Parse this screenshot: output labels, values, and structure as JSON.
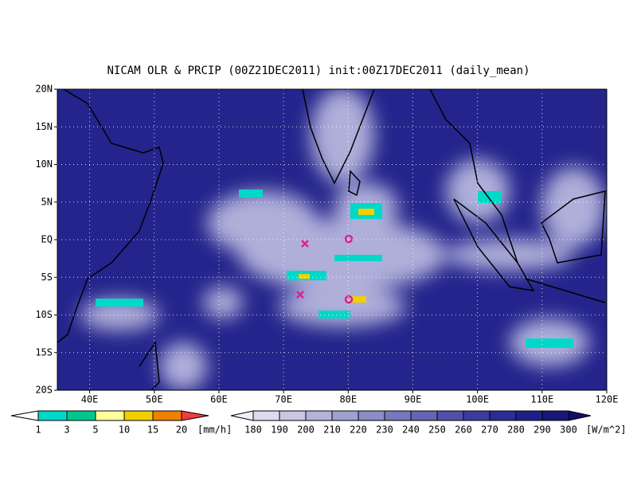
{
  "header": {
    "title": "NICAM OLR & PRCIP (00Z21DEC2011) init:00Z17DEC2011 (daily_mean)"
  },
  "map": {
    "lat_labels": [
      "20N",
      "15N",
      "10N",
      "5N",
      "EQ",
      "5S",
      "10S",
      "15S",
      "20S"
    ],
    "lon_labels": [
      "40E",
      "50E",
      "60E",
      "70E",
      "80E",
      "90E",
      "100E",
      "110E",
      "120E"
    ]
  },
  "precip_legend": {
    "labels": [
      "1",
      "3",
      "5",
      "10",
      "15",
      "20"
    ],
    "unit": "[mm/h]",
    "colors": [
      "#00d8c8",
      "#00c88c",
      "#ffff99",
      "#f0d000",
      "#f08000",
      "#f03c3c"
    ]
  },
  "olr_legend": {
    "labels": [
      "180",
      "190",
      "200",
      "210",
      "220",
      "230",
      "240",
      "250",
      "260",
      "270",
      "280",
      "290",
      "300"
    ],
    "unit": "[W/m^2]",
    "colors": [
      "#f0f0f8",
      "#dcdcee",
      "#c8c8e4",
      "#b4b4da",
      "#a0a0d0",
      "#8c8cc6",
      "#7878bc",
      "#6464b2",
      "#5050a8",
      "#3c3c9e",
      "#2c2c94",
      "#20208a",
      "#181878",
      "#10106a"
    ]
  }
}
